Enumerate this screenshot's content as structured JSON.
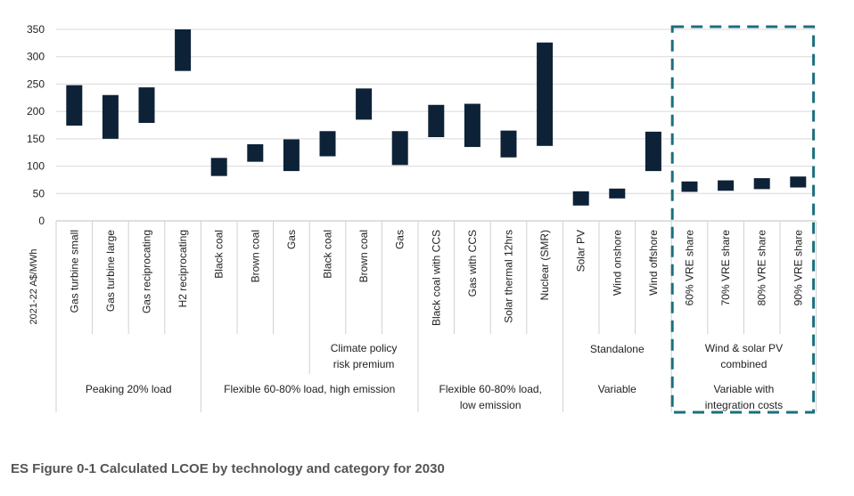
{
  "chart_data": {
    "type": "floating-bar",
    "ylabel": "2021-22 A$/MWh",
    "ylim": [
      0,
      350
    ],
    "yticks": [
      "0",
      "50",
      "100",
      "150",
      "200",
      "250",
      "300",
      "350"
    ],
    "grid": true,
    "bar_color": "#0d2237",
    "highlight_color": "#1b6f80",
    "categories": [
      "Gas turbine small",
      "Gas turbine large",
      "Gas reciprocating",
      "H2 reciprocating",
      "Black coal",
      "Brown coal",
      "Gas",
      "Black coal",
      "Brown coal",
      "Gas",
      "Black coal with CCS",
      "Gas with CCS",
      "Solar thermal 12hrs",
      "Nuclear (SMR)",
      "Solar PV",
      "Wind onshore",
      "Wind offshore",
      "60% VRE share",
      "70% VRE share",
      "80% VRE share",
      "90% VRE share"
    ],
    "ranges": [
      [
        174,
        248
      ],
      [
        150,
        230
      ],
      [
        179,
        244
      ],
      [
        274,
        350
      ],
      [
        82,
        115
      ],
      [
        108,
        140
      ],
      [
        91,
        149
      ],
      [
        118,
        164
      ],
      [
        185,
        242
      ],
      [
        102,
        164
      ],
      [
        153,
        212
      ],
      [
        135,
        214
      ],
      [
        116,
        165
      ],
      [
        137,
        326
      ],
      [
        28,
        54
      ],
      [
        41,
        59
      ],
      [
        91,
        163
      ],
      [
        53,
        72
      ],
      [
        55,
        74
      ],
      [
        58,
        78
      ],
      [
        61,
        81
      ]
    ],
    "subgroups": [
      {
        "label": "Climate policy risk premium",
        "start": 7,
        "end": 9
      },
      {
        "label": "Standalone",
        "start": 14,
        "end": 16
      },
      {
        "label": "Wind & solar PV combined",
        "start": 17,
        "end": 20
      }
    ],
    "groups": [
      {
        "label": "Peaking 20% load",
        "start": 0,
        "end": 3
      },
      {
        "label": "Flexible 60-80% load, high emission",
        "start": 4,
        "end": 9
      },
      {
        "label": "Flexible 60-80% load, low emission",
        "start": 10,
        "end": 13
      },
      {
        "label": "Variable",
        "start": 14,
        "end": 16
      },
      {
        "label": "Variable with integration costs",
        "start": 17,
        "end": 20
      }
    ],
    "highlight": {
      "start": 17,
      "end": 20
    }
  },
  "caption": "ES Figure 0-1 Calculated LCOE by technology and category for 2030"
}
